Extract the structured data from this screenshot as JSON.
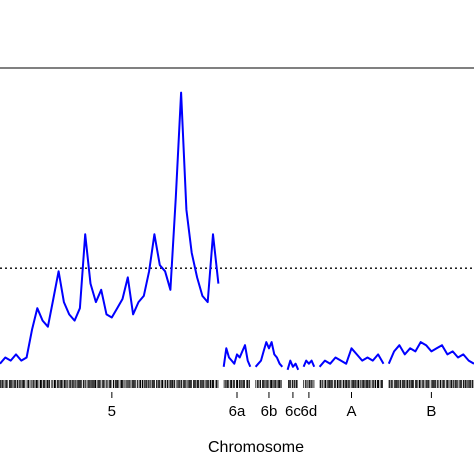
{
  "chart_data": {
    "type": "line",
    "title": "",
    "xlabel": "Chromosome",
    "ylabel": "",
    "ylim": [
      0,
      10
    ],
    "grid": false,
    "legend": "none",
    "chromosomes": [
      {
        "label": "5",
        "start": -4,
        "end": 37
      },
      {
        "label": "6a",
        "start": 38,
        "end": 43
      },
      {
        "label": "6b",
        "start": 44,
        "end": 49
      },
      {
        "label": "6c",
        "start": 50,
        "end": 52
      },
      {
        "label": "6d",
        "start": 53,
        "end": 55
      },
      {
        "label": "A",
        "start": 56,
        "end": 68
      },
      {
        "label": "B",
        "start": 69,
        "end": 85
      }
    ],
    "threshold": 3.5,
    "threshold_style": "dotted",
    "series": [
      {
        "color": "#0000ff",
        "segments": [
          {
            "x": [
              -4,
              -3,
              -2,
              -1,
              0,
              1,
              2,
              3,
              4,
              5,
              6,
              7,
              8,
              9,
              10,
              11,
              12,
              13,
              14,
              15,
              16,
              17,
              18,
              19,
              20,
              21,
              22,
              23,
              24,
              25,
              26,
              27,
              28,
              29,
              30,
              31,
              32,
              33,
              34,
              35,
              36,
              37
            ],
            "y": [
              0.4,
              0.6,
              0.5,
              0.7,
              0.5,
              0.6,
              1.5,
              2.2,
              1.8,
              1.6,
              2.5,
              3.4,
              2.4,
              2.0,
              1.8,
              2.2,
              4.6,
              3.0,
              2.4,
              2.8,
              2.0,
              1.9,
              2.2,
              2.5,
              3.2,
              2.0,
              2.4,
              2.6,
              3.4,
              4.6,
              3.6,
              3.4,
              2.8,
              5.8,
              9.2,
              5.4,
              4.0,
              3.2,
              2.6,
              2.4,
              4.6,
              3.0
            ]
          },
          {
            "x": [
              38,
              38.5,
              39,
              39.5,
              40,
              40.5,
              41,
              41.5,
              42,
              42.5,
              43
            ],
            "y": [
              0.3,
              0.9,
              0.6,
              0.5,
              0.4,
              0.7,
              0.6,
              0.8,
              1.0,
              0.5,
              0.3
            ]
          },
          {
            "x": [
              44,
              44.5,
              45,
              45.5,
              46,
              46.5,
              47,
              47.5,
              48,
              48.5,
              49
            ],
            "y": [
              0.3,
              0.4,
              0.5,
              0.8,
              1.1,
              0.9,
              1.1,
              0.7,
              0.6,
              0.4,
              0.3
            ]
          },
          {
            "x": [
              50,
              50.5,
              51,
              51.5,
              52
            ],
            "y": [
              0.2,
              0.5,
              0.3,
              0.4,
              0.2
            ]
          },
          {
            "x": [
              53,
              53.5,
              54,
              54.5,
              55
            ],
            "y": [
              0.3,
              0.5,
              0.4,
              0.5,
              0.3
            ]
          },
          {
            "x": [
              56,
              57,
              58,
              59,
              60,
              61,
              62,
              63,
              64,
              65,
              66,
              67,
              68
            ],
            "y": [
              0.3,
              0.5,
              0.4,
              0.6,
              0.5,
              0.4,
              0.9,
              0.7,
              0.5,
              0.6,
              0.5,
              0.7,
              0.4
            ]
          },
          {
            "x": [
              69,
              70,
              71,
              72,
              73,
              74,
              75,
              76,
              77,
              78,
              79,
              80,
              81,
              82,
              83,
              84,
              85
            ],
            "y": [
              0.4,
              0.8,
              1.0,
              0.7,
              0.9,
              0.8,
              1.1,
              1.0,
              0.8,
              0.9,
              1.0,
              0.7,
              0.8,
              0.6,
              0.7,
              0.5,
              0.4
            ]
          }
        ]
      }
    ]
  }
}
